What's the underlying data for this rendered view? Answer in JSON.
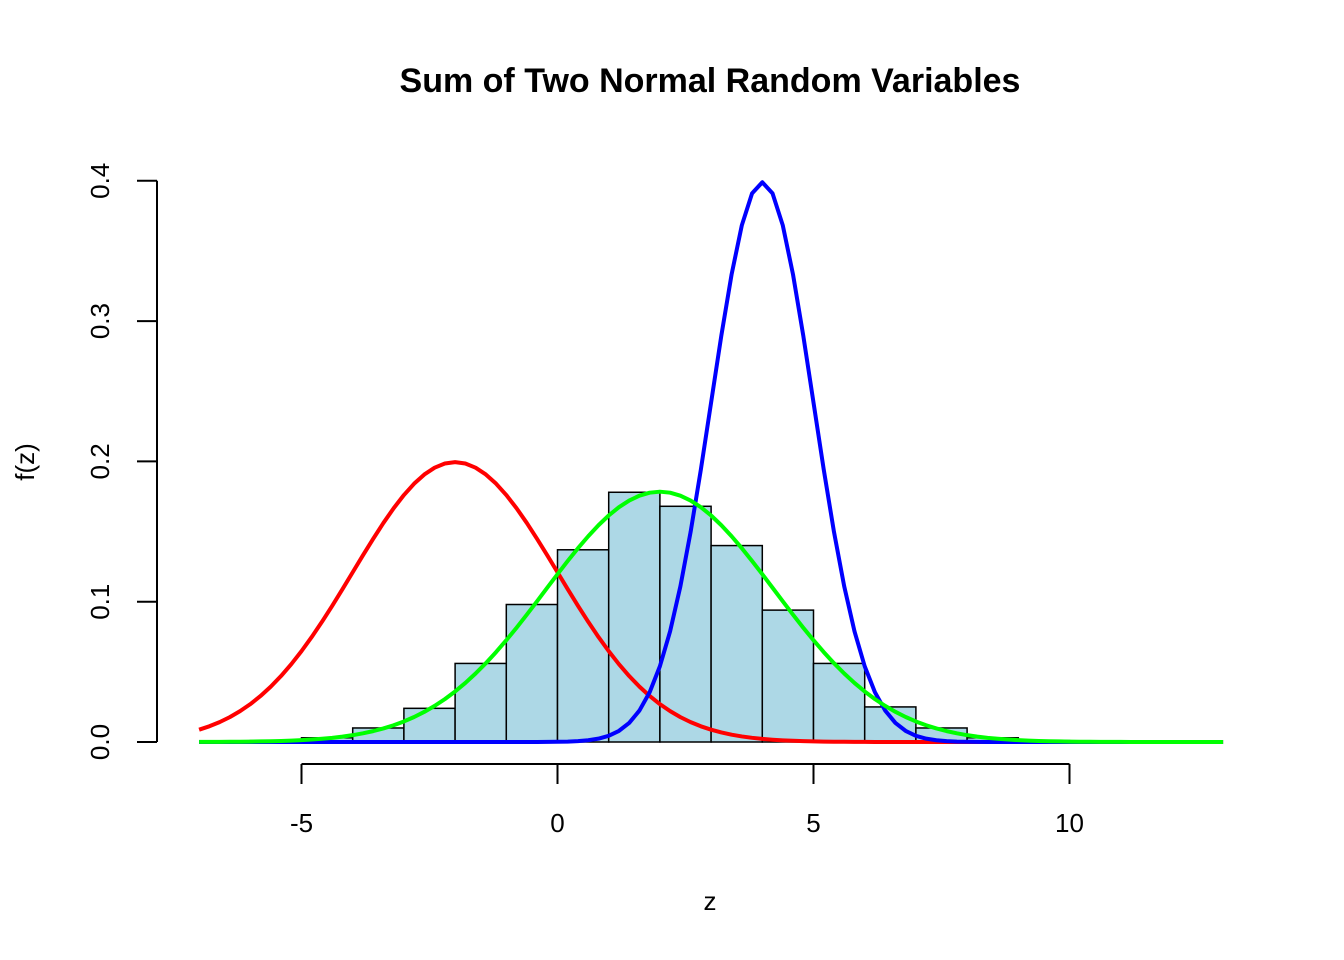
{
  "chart_data": {
    "type": "histogram",
    "title": "Sum of Two Normal Random Variables",
    "xlabel": "z",
    "ylabel": "f(z)",
    "xlim": [
      -7,
      13
    ],
    "ylim": [
      0,
      0.4
    ],
    "x_ticks": [
      -5,
      0,
      5,
      10
    ],
    "x_tick_labels": [
      "-5",
      "0",
      "5",
      "10"
    ],
    "y_ticks": [
      0.0,
      0.1,
      0.2,
      0.3,
      0.4
    ],
    "y_tick_labels": [
      "0.0",
      "0.1",
      "0.2",
      "0.3",
      "0.4"
    ],
    "grid": false,
    "histogram": {
      "fill": "#add8e6",
      "border": "#000000",
      "bins": [
        {
          "x0": -6,
          "x1": -5,
          "density": 0.001
        },
        {
          "x0": -5,
          "x1": -4,
          "density": 0.003
        },
        {
          "x0": -4,
          "x1": -3,
          "density": 0.01
        },
        {
          "x0": -3,
          "x1": -2,
          "density": 0.024
        },
        {
          "x0": -2,
          "x1": -1,
          "density": 0.056
        },
        {
          "x0": -1,
          "x1": 0,
          "density": 0.098
        },
        {
          "x0": 0,
          "x1": 1,
          "density": 0.137
        },
        {
          "x0": 1,
          "x1": 2,
          "density": 0.178
        },
        {
          "x0": 2,
          "x1": 3,
          "density": 0.168
        },
        {
          "x0": 3,
          "x1": 4,
          "density": 0.14
        },
        {
          "x0": 4,
          "x1": 5,
          "density": 0.094
        },
        {
          "x0": 5,
          "x1": 6,
          "density": 0.056
        },
        {
          "x0": 6,
          "x1": 7,
          "density": 0.025
        },
        {
          "x0": 7,
          "x1": 8,
          "density": 0.01
        },
        {
          "x0": 8,
          "x1": 9,
          "density": 0.003
        },
        {
          "x0": 9,
          "x1": 10,
          "density": 0.001
        }
      ]
    },
    "series": [
      {
        "color": "#ff0000",
        "type": "normal-density",
        "mean": -2,
        "sd": 2,
        "x_range": [
          -7,
          13
        ]
      },
      {
        "color": "#0000ff",
        "type": "normal-density",
        "mean": 4,
        "sd": 1,
        "x_range": [
          -7,
          13
        ]
      },
      {
        "color": "#00ff00",
        "type": "normal-density",
        "mean": 2,
        "sd": 2.236,
        "x_range": [
          -7,
          13
        ]
      }
    ]
  }
}
